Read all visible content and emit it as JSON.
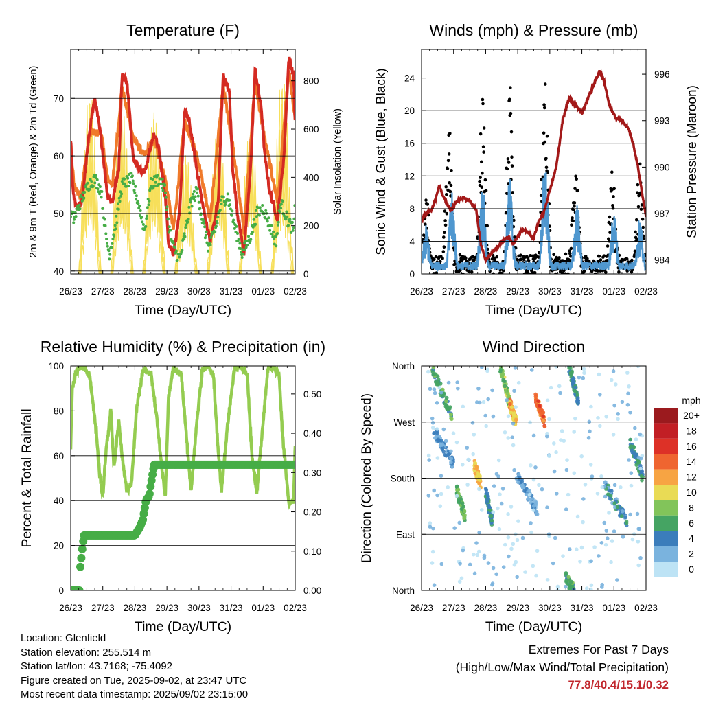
{
  "chart_data": [
    {
      "type": "line",
      "title": "Temperature (F)",
      "xlabel": "Time (Day/UTC)",
      "ylabel": "2m & 9m T (Red, Orange) & 2m Td (Green)",
      "y2label": "Solar Insolation (Yellow)",
      "xticks": [
        "26/23",
        "27/23",
        "28/23",
        "29/23",
        "30/23",
        "31/23",
        "01/23",
        "02/23"
      ],
      "xlim": [
        0,
        7
      ],
      "ylim": [
        39.5,
        78.5
      ],
      "yticks": [
        40,
        50,
        60,
        70
      ],
      "y2lim": [
        0,
        930
      ],
      "y2ticks": [
        0,
        200,
        400,
        600,
        800
      ],
      "grid": "horizontal",
      "colors": {
        "t2m": "#d42a22",
        "t9m": "#f07a2a",
        "td2m": "#46ad46",
        "solar": "#f7df5a"
      },
      "series": [
        {
          "key": "t2m",
          "x": [
            0,
            0.08,
            0.2,
            0.35,
            0.6,
            0.75,
            0.95,
            1.05,
            1.15,
            1.3,
            1.5,
            1.6,
            1.75,
            1.95,
            2.1,
            2.3,
            2.6,
            2.75,
            2.95,
            3.05,
            3.2,
            3.4,
            3.55,
            3.7,
            3.95,
            4.1,
            4.35,
            4.6,
            4.75,
            4.95,
            5.05,
            5.2,
            5.4,
            5.6,
            5.75,
            5.95,
            6.05,
            6.2,
            6.45,
            6.65,
            6.8,
            6.95,
            7
          ],
          "values": [
            63,
            53,
            51,
            52,
            65,
            70,
            63,
            58,
            53,
            52,
            58,
            74,
            73,
            60,
            58,
            57,
            64,
            61,
            53,
            45,
            43,
            50,
            68,
            66,
            57,
            52,
            45,
            52,
            74,
            71,
            58,
            50,
            43,
            57,
            75,
            68,
            60,
            54,
            49,
            60,
            77,
            74,
            65
          ]
        },
        {
          "key": "t9m",
          "x": [
            0,
            0.1,
            0.3,
            0.6,
            0.95,
            1.15,
            1.3,
            1.6,
            1.95,
            2.3,
            2.6,
            2.95,
            3.2,
            3.55,
            3.95,
            4.35,
            4.75,
            5.05,
            5.4,
            5.75,
            6.05,
            6.45,
            6.8,
            7
          ],
          "values": [
            62,
            55,
            53,
            64,
            64,
            56,
            55,
            72,
            63,
            60,
            63,
            56,
            47,
            66,
            60,
            49,
            72,
            62,
            47,
            73,
            63,
            52,
            75,
            66
          ]
        },
        {
          "key": "td2m",
          "x": [
            0,
            0.1,
            0.3,
            0.55,
            0.75,
            0.95,
            1.1,
            1.2,
            1.4,
            1.6,
            1.9,
            2.1,
            2.3,
            2.5,
            2.75,
            2.95,
            3.05,
            3.2,
            3.4,
            3.55,
            3.75,
            3.95,
            4.1,
            4.3,
            4.5,
            4.7,
            4.9,
            5.1,
            5.35,
            5.6,
            5.8,
            6.0,
            6.2,
            6.4,
            6.55,
            6.75,
            6.95,
            7
          ],
          "values": [
            50,
            49,
            52,
            55,
            56,
            54,
            46,
            43,
            48,
            55,
            56,
            52,
            47,
            55,
            56,
            54,
            48,
            44,
            42,
            46,
            52,
            54,
            49,
            44,
            47,
            52,
            53,
            48,
            43,
            46,
            50,
            51,
            48,
            45,
            52,
            49,
            47,
            52
          ]
        },
        {
          "key": "solar",
          "axis": "y2",
          "peak_times": [
            0.6,
            1.6,
            2.6,
            3.6,
            4.6,
            5.6,
            6.6
          ],
          "peak_values": [
            920,
            900,
            840,
            620,
            760,
            780,
            880
          ]
        }
      ]
    },
    {
      "type": "scatter",
      "title": "Winds (mph) & Pressure (mb)",
      "xlabel": "Time (Day/UTC)",
      "ylabel": "Sonic Wind & Gust (Blue, Black)",
      "y2label": "Station Pressure (Maroon)",
      "xticks": [
        "26/23",
        "27/23",
        "28/23",
        "29/23",
        "30/23",
        "31/23",
        "01/23",
        "02/23"
      ],
      "xlim": [
        0,
        7
      ],
      "ylim": [
        0,
        27.5
      ],
      "yticks": [
        0,
        4,
        8,
        12,
        16,
        20,
        24
      ],
      "y2lim": [
        983.1,
        997.6
      ],
      "y2ticks": [
        984,
        987,
        990,
        993,
        996
      ],
      "grid": "horizontal",
      "colors": {
        "wind": "#4f97cf",
        "gust": "#000000",
        "pressure": "#a31919"
      },
      "series": [
        {
          "key": "wind",
          "peak_times": [
            0.15,
            0.95,
            1.9,
            2.75,
            3.85,
            4.85,
            6.0,
            6.8
          ],
          "peak_values": [
            6,
            10,
            11,
            12,
            14,
            9,
            8,
            7
          ]
        },
        {
          "key": "gust",
          "peak_times": [
            0.15,
            0.85,
            1.9,
            2.75,
            3.85,
            4.8,
            5.95,
            6.8
          ],
          "peak_values": [
            9,
            19,
            22,
            23,
            25,
            15,
            12,
            13
          ]
        },
        {
          "key": "pressure",
          "x": [
            0,
            0.1,
            0.3,
            0.45,
            0.55,
            0.7,
            0.9,
            1.1,
            1.3,
            1.5,
            1.7,
            1.85,
            2.0,
            2.2,
            2.45,
            2.7,
            2.85,
            3.0,
            3.15,
            3.3,
            3.5,
            3.65,
            3.8,
            4.0,
            4.2,
            4.4,
            4.6,
            4.8,
            5.0,
            5.2,
            5.4,
            5.55,
            5.7,
            5.85,
            6.05,
            6.25,
            6.45,
            6.6,
            6.75,
            6.9,
            7
          ],
          "values": [
            986.5,
            987.0,
            987.2,
            988.0,
            988.8,
            988.0,
            987.2,
            987.8,
            988.0,
            987.8,
            987.3,
            985.0,
            984.0,
            984.5,
            985.0,
            985.5,
            985.0,
            985.5,
            986.0,
            985.8,
            985.4,
            986.5,
            987.0,
            988.5,
            990.0,
            993.0,
            994.5,
            994.0,
            993.5,
            994.5,
            995.5,
            996.2,
            995.5,
            994.0,
            993.2,
            993.0,
            992.5,
            991.5,
            990.0,
            988.0,
            986.8
          ]
        }
      ]
    },
    {
      "type": "line",
      "title": "Relative Humidity (%) & Precipitation (in)",
      "xlabel": "Time (Day/UTC)",
      "ylabel": "Percent & Total Rainfall",
      "xticks": [
        "26/23",
        "27/23",
        "28/23",
        "29/23",
        "30/23",
        "31/23",
        "01/23",
        "02/23"
      ],
      "xlim": [
        0,
        7
      ],
      "ylim": [
        0,
        100
      ],
      "yticks": [
        0,
        20,
        40,
        60,
        80,
        100
      ],
      "y2lim": [
        0,
        0.5714
      ],
      "y2ticks": [
        "0.00",
        "0.10",
        "0.20",
        "0.30",
        "0.40",
        "0.50"
      ],
      "grid": "horizontal",
      "colors": {
        "rh": "#94cc50",
        "precip": "#46ad46"
      },
      "series": [
        {
          "key": "rh",
          "x": [
            0,
            0.05,
            0.15,
            0.3,
            0.45,
            0.6,
            0.8,
            0.9,
            1.0,
            1.1,
            1.25,
            1.35,
            1.5,
            1.6,
            1.75,
            1.9,
            2.05,
            2.25,
            2.5,
            2.7,
            2.8,
            2.95,
            3.05,
            3.2,
            3.45,
            3.6,
            3.75,
            3.9,
            4.1,
            4.25,
            4.45,
            4.6,
            4.7,
            4.9,
            5.1,
            5.25,
            5.5,
            5.65,
            5.8,
            6.0,
            6.15,
            6.3,
            6.5,
            6.6,
            6.8,
            6.95,
            7
          ],
          "values": [
            64,
            90,
            97,
            100,
            99,
            95,
            70,
            52,
            42,
            62,
            80,
            55,
            76,
            60,
            44,
            48,
            80,
            98,
            97,
            75,
            60,
            42,
            86,
            99,
            96,
            70,
            44,
            70,
            98,
            100,
            96,
            62,
            44,
            75,
            98,
            100,
            97,
            60,
            44,
            75,
            99,
            100,
            96,
            70,
            39,
            40,
            65
          ]
        },
        {
          "key": "precip",
          "axis": "y2",
          "x": [
            0,
            0.28,
            0.3,
            0.38,
            0.42,
            1.0,
            2.0,
            2.15,
            2.25,
            2.35,
            2.45,
            2.5,
            2.6,
            7
          ],
          "values": [
            0.0,
            0.0,
            0.06,
            0.12,
            0.14,
            0.14,
            0.14,
            0.16,
            0.18,
            0.23,
            0.24,
            0.27,
            0.32,
            0.32
          ]
        }
      ]
    },
    {
      "type": "scatter",
      "title": "Wind Direction",
      "xlabel": "Time (Day/UTC)",
      "ylabel": "Direction (Colored By Speed)",
      "xticks": [
        "26/23",
        "27/23",
        "28/23",
        "29/23",
        "30/23",
        "31/23",
        "01/23",
        "02/23"
      ],
      "xlim": [
        0,
        7
      ],
      "ylim": [
        0,
        360
      ],
      "yticks": [
        "North",
        "East",
        "South",
        "West",
        "North"
      ],
      "ytick_values": [
        0,
        90,
        180,
        270,
        360
      ],
      "grid": "horizontal",
      "legend_title": "mph",
      "legend_position": "right",
      "legend_labels": [
        "20+",
        "18",
        "16",
        "14",
        "12",
        "10",
        "8",
        "6",
        "4",
        "2",
        "0"
      ],
      "legend_colors": [
        "#9b1a1e",
        "#c21f25",
        "#dd3127",
        "#ef6530",
        "#f7a443",
        "#e9db55",
        "#82c45a",
        "#45a463",
        "#3b7dbb",
        "#7ab3de",
        "#bde3f5"
      ],
      "clusters": [
        {
          "x": [
            0.3,
            0.95
          ],
          "dir": [
            280,
            360
          ],
          "speed": 6
        },
        {
          "x": [
            0.35,
            1.0
          ],
          "dir": [
            200,
            260
          ],
          "speed": 3
        },
        {
          "x": [
            1.1,
            1.35
          ],
          "dir": [
            120,
            160
          ],
          "speed": 7
        },
        {
          "x": [
            1.65,
            1.85
          ],
          "dir": [
            170,
            200
          ],
          "speed": 11
        },
        {
          "x": [
            2.0,
            2.2
          ],
          "dir": [
            110,
            160
          ],
          "speed": 5
        },
        {
          "x": [
            2.45,
            2.85
          ],
          "dir": [
            280,
            360
          ],
          "speed": 8
        },
        {
          "x": [
            2.75,
            2.95
          ],
          "dir": [
            270,
            300
          ],
          "speed": 12
        },
        {
          "x": [
            3.55,
            3.85
          ],
          "dir": [
            270,
            310
          ],
          "speed": 14
        },
        {
          "x": [
            3.0,
            3.6
          ],
          "dir": [
            130,
            180
          ],
          "speed": 3
        },
        {
          "x": [
            4.6,
            4.9
          ],
          "dir": [
            300,
            360
          ],
          "speed": 5
        },
        {
          "x": [
            4.5,
            4.75
          ],
          "dir": [
            0,
            20
          ],
          "speed": 6
        },
        {
          "x": [
            5.7,
            6.4
          ],
          "dir": [
            110,
            170
          ],
          "speed": 4
        },
        {
          "x": [
            6.5,
            6.9
          ],
          "dir": [
            180,
            240
          ],
          "speed": 5
        },
        {
          "x": [
            0.2,
            6.9
          ],
          "dir": [
            0,
            360
          ],
          "speed": 1
        }
      ]
    }
  ],
  "info": {
    "location": "Location: Glenfield",
    "elevation": "Station elevation: 255.514 m",
    "latlon": "Station lat/lon: 43.7168; -75.4092",
    "created": "Figure created on Tue, 2025-09-02, at 23:47 UTC",
    "timestamp": "Most recent data timestamp: 2025/09/02 23:15:00"
  },
  "extremes": {
    "title": "Extremes For Past 7 Days",
    "subtitle": "(High/Low/Max Wind/Total Precipitation)",
    "values": "77.8/40.4/15.1/0.32"
  }
}
